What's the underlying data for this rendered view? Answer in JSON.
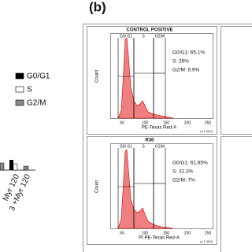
{
  "figure_label": "(b)",
  "legend": [
    "G0/G1",
    "S",
    "G2/M"
  ],
  "bar_chart": {
    "x_labels": [
      "Myr 120",
      "3 +Myr 120"
    ]
  },
  "panels": [
    {
      "title": "CONTROL POSITIVE",
      "y_label": "Count",
      "x_label": "PE-Texas Red-A",
      "x_ticks": [
        "50",
        "100",
        "150",
        "200",
        "250"
      ],
      "x_unit": "(x 1,000)",
      "gates": [
        "G0/ G1",
        "S",
        "G2/M"
      ],
      "stats": [
        "G0/G1: 65.1%",
        "S: 26%",
        "G2/M: 8.9%"
      ]
    },
    {
      "title": "R30",
      "y_label": "Count",
      "x_label": "PI PE-Texas Red-A",
      "x_ticks": [
        "50",
        "100",
        "150",
        "200",
        "250"
      ],
      "x_unit": "(x 1,000)",
      "gates": [
        "G0/ G1",
        "S",
        "G2/M"
      ],
      "stats": [
        "G0/G1: 61.65%",
        "S: 31.3%",
        "G2/M: 7%"
      ]
    }
  ]
}
